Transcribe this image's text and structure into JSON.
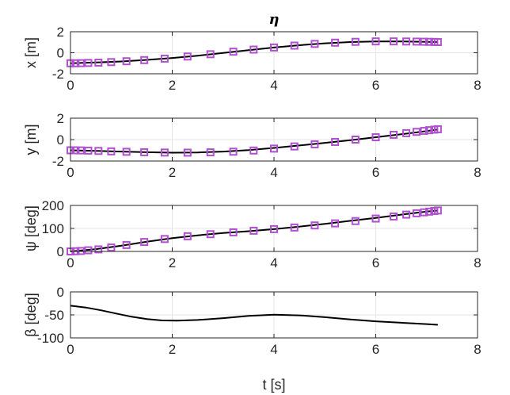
{
  "figure": {
    "title": "η",
    "xlabel": "t [s]"
  },
  "colors": {
    "reference_marker": "#b050d0",
    "actual_line": "#000000",
    "grid": "#e6e6e6",
    "axes": "#262626"
  },
  "chart_data": [
    {
      "type": "line",
      "title": "η",
      "xlabel": "",
      "ylabel": "x [m]",
      "xlim": [
        0,
        8
      ],
      "ylim": [
        -2,
        2
      ],
      "xticks": [
        "0",
        "2",
        "4",
        "6",
        "8"
      ],
      "yticks": [
        "-2",
        "0",
        "2"
      ],
      "grid": true,
      "series": [
        {
          "kind": "line",
          "marker": "none",
          "x": [
            0,
            0.5,
            1,
            1.5,
            2,
            2.5,
            3,
            3.5,
            4,
            4.5,
            5,
            5.5,
            6,
            6.5,
            7,
            7.22
          ],
          "y": [
            -1.0,
            -0.93,
            -0.83,
            -0.68,
            -0.5,
            -0.28,
            -0.02,
            0.25,
            0.5,
            0.72,
            0.9,
            1.02,
            1.08,
            1.08,
            1.04,
            1.02
          ]
        },
        {
          "kind": "markers",
          "marker": "square",
          "x": [
            0,
            0.1,
            0.2,
            0.35,
            0.55,
            0.8,
            1.1,
            1.45,
            1.85,
            2.3,
            2.75,
            3.2,
            3.6,
            4.0,
            4.4,
            4.8,
            5.2,
            5.6,
            6.0,
            6.35,
            6.6,
            6.8,
            6.95,
            7.05,
            7.15,
            7.22
          ],
          "y": [
            -1.0,
            -1.0,
            -0.99,
            -0.97,
            -0.94,
            -0.89,
            -0.81,
            -0.7,
            -0.56,
            -0.36,
            -0.14,
            0.1,
            0.3,
            0.5,
            0.68,
            0.84,
            0.96,
            1.04,
            1.08,
            1.08,
            1.07,
            1.06,
            1.05,
            1.04,
            1.03,
            1.02
          ]
        }
      ]
    },
    {
      "type": "line",
      "xlabel": "",
      "ylabel": "y [m]",
      "xlim": [
        0,
        8
      ],
      "ylim": [
        -2,
        2
      ],
      "xticks": [
        "0",
        "2",
        "4",
        "6",
        "8"
      ],
      "yticks": [
        "-2",
        "0",
        "2"
      ],
      "grid": true,
      "series": [
        {
          "kind": "line",
          "marker": "none",
          "x": [
            0,
            0.5,
            1,
            1.5,
            2,
            2.5,
            3,
            3.5,
            4,
            4.5,
            5,
            5.5,
            6,
            6.5,
            7,
            7.22
          ],
          "y": [
            -1.0,
            -1.05,
            -1.12,
            -1.18,
            -1.22,
            -1.2,
            -1.12,
            -0.98,
            -0.78,
            -0.55,
            -0.3,
            -0.05,
            0.22,
            0.5,
            0.8,
            0.95
          ]
        },
        {
          "kind": "markers",
          "marker": "square",
          "x": [
            0,
            0.1,
            0.2,
            0.35,
            0.55,
            0.8,
            1.1,
            1.45,
            1.85,
            2.3,
            2.75,
            3.2,
            3.6,
            4.0,
            4.4,
            4.8,
            5.2,
            5.6,
            6.0,
            6.35,
            6.6,
            6.8,
            6.95,
            7.05,
            7.15,
            7.22
          ],
          "y": [
            -1.0,
            -1.0,
            -1.01,
            -1.03,
            -1.06,
            -1.1,
            -1.14,
            -1.18,
            -1.21,
            -1.22,
            -1.19,
            -1.13,
            -1.02,
            -0.84,
            -0.64,
            -0.44,
            -0.22,
            0.0,
            0.22,
            0.45,
            0.6,
            0.72,
            0.81,
            0.88,
            0.93,
            0.97
          ]
        }
      ]
    },
    {
      "type": "line",
      "xlabel": "",
      "ylabel": "ψ [deg]",
      "xlim": [
        0,
        8
      ],
      "ylim": [
        0,
        200
      ],
      "xticks": [
        "0",
        "2",
        "4",
        "6",
        "8"
      ],
      "yticks": [
        "0",
        "100",
        "200"
      ],
      "grid": true,
      "series": [
        {
          "kind": "line",
          "marker": "none",
          "x": [
            0,
            0.5,
            1,
            1.5,
            2,
            2.5,
            3,
            3.5,
            4,
            4.5,
            5,
            5.5,
            6,
            6.5,
            7,
            7.22
          ],
          "y": [
            0,
            10,
            25,
            42,
            58,
            70,
            80,
            88,
            97,
            108,
            120,
            133,
            146,
            160,
            173,
            178
          ]
        },
        {
          "kind": "markers",
          "marker": "square",
          "x": [
            0,
            0.1,
            0.2,
            0.35,
            0.55,
            0.8,
            1.1,
            1.45,
            1.85,
            2.3,
            2.75,
            3.2,
            3.6,
            4.0,
            4.4,
            4.8,
            5.2,
            5.6,
            6.0,
            6.35,
            6.6,
            6.8,
            6.95,
            7.05,
            7.15,
            7.22
          ],
          "y": [
            0,
            1,
            2,
            5,
            9,
            17,
            28,
            41,
            54,
            66,
            75,
            83,
            90,
            97,
            104,
            113,
            122,
            132,
            143,
            152,
            160,
            166,
            170,
            173,
            176,
            178
          ]
        }
      ]
    },
    {
      "type": "line",
      "xlabel": "t [s]",
      "ylabel": "β [deg]",
      "xlim": [
        0,
        8
      ],
      "ylim": [
        -100,
        0
      ],
      "xticks": [
        "0",
        "2",
        "4",
        "6",
        "8"
      ],
      "yticks": [
        "-100",
        "-50",
        "0"
      ],
      "grid": true,
      "series": [
        {
          "kind": "line",
          "marker": "none",
          "x": [
            0,
            0.3,
            0.6,
            0.9,
            1.2,
            1.5,
            1.8,
            2.1,
            2.5,
            3.0,
            3.5,
            4.0,
            4.5,
            5.0,
            5.5,
            6.0,
            6.5,
            7.0,
            7.22
          ],
          "y": [
            -30,
            -34,
            -40,
            -47,
            -54,
            -59,
            -62,
            -62.5,
            -61,
            -57,
            -52,
            -49.5,
            -51,
            -55,
            -60,
            -64,
            -67,
            -70,
            -71.5
          ]
        }
      ]
    }
  ]
}
